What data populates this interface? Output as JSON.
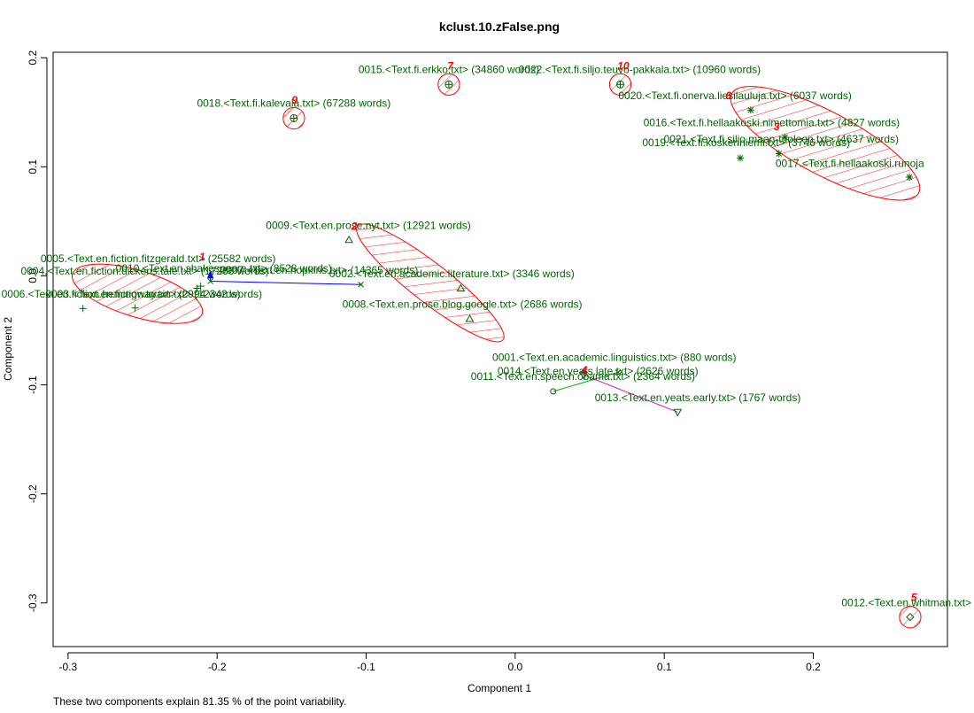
{
  "chart_data": {
    "type": "scatter",
    "title": "kclust.10.zFalse.png",
    "xlabel": "Component 1",
    "ylabel": "Component 2",
    "caption": "These two components explain 81.35 % of the point variability.",
    "xlim": [
      -0.31,
      0.29
    ],
    "ylim": [
      -0.34,
      0.205
    ],
    "xticks": [
      "-0.3",
      "-0.2",
      "-0.1",
      "0.0",
      "0.1",
      "0.2"
    ],
    "yticks": [
      "-0.3",
      "-0.2",
      "-0.1",
      "0.0",
      "0.1",
      "0.2"
    ],
    "grid": false,
    "colors": {
      "label": "#006400",
      "cluster": "#ff0000",
      "blue": "#0000ff",
      "green": "#00aa00",
      "magenta": "#dd00dd"
    },
    "clusters": [
      {
        "number": "1",
        "ellipse": {
          "cx": -0.2535,
          "cy": -0.0165,
          "rx": 0.0455,
          "ry": 0.0155,
          "angle": 17
        },
        "label_x": -0.21,
        "label_y": 0.014
      },
      {
        "number": "2",
        "ellipse": {
          "cx": -0.057,
          "cy": -0.0065,
          "rx": 0.062,
          "ry": 0.013,
          "angle": 38
        },
        "label_x": -0.108,
        "label_y": 0.042
      },
      {
        "number": "5",
        "ellipse": {
          "cx": 0.265,
          "cy": -0.313,
          "rx": 0.0072,
          "ry": 0.0072,
          "angle": 0
        },
        "label_x": 0.2675,
        "label_y": -0.298
      },
      {
        "number": "6",
        "ellipse": {
          "cx": 0.208,
          "cy": 0.1215,
          "rx": 0.071,
          "ry": 0.021,
          "angle": 28
        },
        "label_x": 0.143,
        "label_y": 0.162
      },
      {
        "number": "7",
        "ellipse": {
          "cx": -0.0445,
          "cy": 0.1755,
          "rx": 0.0072,
          "ry": 0.0072,
          "angle": 0
        },
        "label_x": -0.0435,
        "label_y": 0.189
      },
      {
        "number": "9",
        "ellipse": {
          "cx": -0.1485,
          "cy": 0.1445,
          "rx": 0.0072,
          "ry": 0.0072,
          "angle": 0
        },
        "label_x": -0.148,
        "label_y": 0.158
      },
      {
        "number": "10",
        "ellipse": {
          "cx": 0.0705,
          "cy": 0.1755,
          "rx": 0.0072,
          "ry": 0.0072,
          "angle": 0
        },
        "label_x": 0.0725,
        "label_y": 0.189
      },
      {
        "number": "3",
        "ellipse": null,
        "label_x": 0.1755,
        "label_y": 0.1335
      },
      {
        "number": "4",
        "ellipse": null,
        "label_x": 0.0465,
        "label_y": -0.09
      }
    ],
    "points": [
      {
        "label": "0015.<Text.fi.erkko.txt> (34860 words)",
        "x": -0.0445,
        "y": 0.1755,
        "shape": "circle-plus",
        "label_x": -0.0445,
        "label_y": 0.186
      },
      {
        "label": "0022.<Text.fi.siljo.teuvo-pakkala.txt> (10960 words)",
        "x": 0.0705,
        "y": 0.1755,
        "shape": "circle-plus",
        "label_x": 0.0835,
        "label_y": 0.186
      },
      {
        "label": "0018.<Text.fi.kalevala.txt> (67288 words)",
        "x": -0.1485,
        "y": 0.1445,
        "shape": "circle-plus",
        "label_x": -0.1485,
        "label_y": 0.155
      },
      {
        "label": "0020.<Text.fi.onerva.liesilauluja.txt> (6037 words)",
        "x": 0.158,
        "y": 0.152,
        "shape": "asterisk",
        "label_x": 0.1475,
        "label_y": 0.162
      },
      {
        "label": "0016.<Text.fi.hellaakoski.nimettomia.txt> (4827 words)",
        "x": 0.181,
        "y": 0.127,
        "shape": "asterisk",
        "label_x": 0.172,
        "label_y": 0.137
      },
      {
        "label": "0021.<Text.fi.siljo.maan-tuoleen.txt> (4637 words)",
        "x": 0.177,
        "y": 0.112,
        "shape": "asterisk",
        "label_x": 0.1785,
        "label_y": 0.122
      },
      {
        "label": "0019.<Text.fi.koskenniemi.txt> (3746 words)",
        "x": 0.151,
        "y": 0.108,
        "shape": "asterisk",
        "label_x": 0.155,
        "label_y": 0.119
      },
      {
        "label": "0017.<Text.fi.hellaakoski.runoja",
        "x": 0.2645,
        "y": 0.0905,
        "shape": "asterisk",
        "label_x": 0.2245,
        "label_y": 0.1
      },
      {
        "label": "0009.<Text.en.prose.nyt.txt> (12921 words)",
        "x": -0.1115,
        "y": 0.033,
        "shape": "triangle-up",
        "label_x": -0.0985,
        "label_y": 0.043
      },
      {
        "label": "0002.<Text.en.academic.literature.txt> (3346 words)",
        "x": -0.0365,
        "y": -0.0115,
        "shape": "triangle-up",
        "label_x": -0.0425,
        "label_y": -0.0015
      },
      {
        "label": "0008.<Text.en.prose.blog.google.txt> (2686 words)",
        "x": -0.0305,
        "y": -0.0395,
        "shape": "triangle-up",
        "label_x": -0.0355,
        "label_y": -0.0295
      },
      {
        "label": "0007.<Text.en.hopkins.txt> (14365 words)",
        "x": -0.1035,
        "y": -0.008,
        "shape": "cross",
        "label_x": -0.1315,
        "label_y": 0.002
      },
      {
        "label": "0010.<Text.en.shakespeare.txt> (8528 words)",
        "x": -0.2045,
        "y": -0.005,
        "shape": "cross",
        "label_x": -0.1955,
        "label_y": 0.0035
      },
      {
        "label": "0005.<Text.en.fiction.fitzgerald.txt> (25582 words)",
        "x": -0.211,
        "y": -0.0095,
        "shape": "plus",
        "label_x": -0.2395,
        "label_y": 0.0125
      },
      {
        "label": "0004.<Text.en.fiction.dickens.tale.txt> (17266 words)",
        "x": -0.2135,
        "y": -0.0115,
        "shape": "plus",
        "label_x": -0.2485,
        "label_y": 0.001
      },
      {
        "label": "0006.<Text.en.fiction.hemingway.txt> (2994 words)",
        "x": -0.29,
        "y": -0.03,
        "shape": "plus",
        "label_x": -0.2645,
        "label_y": -0.02
      },
      {
        "label": "0003.<Text.en.fiction.twain.txt> (12342 words)",
        "x": -0.255,
        "y": -0.0295,
        "shape": "plus",
        "label_x": -0.2425,
        "label_y": -0.02
      },
      {
        "label": "0001.<Text.en.academic.linguistics.txt> (880 words)",
        "x": 0.069,
        "y": -0.0885,
        "shape": "cross",
        "label_x": 0.0665,
        "label_y": -0.078
      },
      {
        "label": "0014.<Text.en.yeats.late.txt> (2626 words)",
        "x": 0.046,
        "y": -0.091,
        "shape": "triangle-down",
        "label_x": 0.0555,
        "label_y": -0.0905
      },
      {
        "label": "0011.<Text.en.speech.obama.txt> (2364 words)",
        "x": 0.0255,
        "y": -0.106,
        "shape": "circle",
        "label_x": 0.0455,
        "label_y": -0.0955
      },
      {
        "label": "0013.<Text.en.yeats.early.txt> (1767 words)",
        "x": 0.109,
        "y": -0.125,
        "shape": "triangle-down",
        "label_x": 0.1225,
        "label_y": -0.115
      },
      {
        "label": "0012.<Text.en.whitman.txt>",
        "x": 0.265,
        "y": -0.313,
        "shape": "diamond",
        "label_x": 0.2625,
        "label_y": -0.303
      }
    ],
    "segments": [
      {
        "x1": -0.1035,
        "y1": -0.008,
        "x2": -0.2045,
        "y2": -0.005,
        "color": "blue"
      },
      {
        "x1": -0.2045,
        "y1": -0.005,
        "x2": -0.2045,
        "y2": 0.0035,
        "color": "blue"
      },
      {
        "x1": 0.0255,
        "y1": -0.106,
        "x2": 0.069,
        "y2": -0.0885,
        "color": "green"
      },
      {
        "x1": 0.046,
        "y1": -0.091,
        "x2": 0.109,
        "y2": -0.125,
        "color": "magenta"
      },
      {
        "x1": 0.046,
        "y1": -0.091,
        "x2": 0.046,
        "y2": -0.087,
        "color": "magenta"
      }
    ]
  }
}
